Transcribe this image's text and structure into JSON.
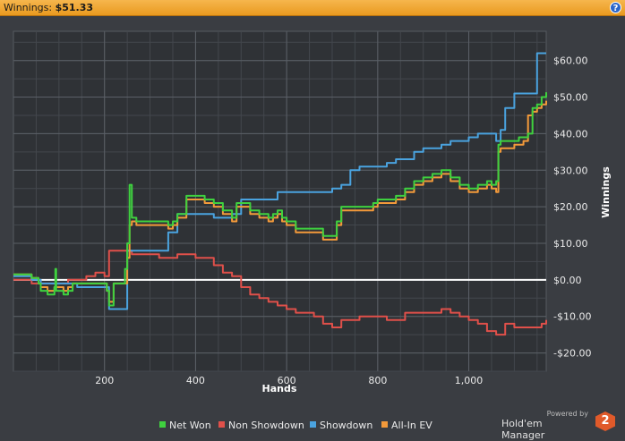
{
  "header": {
    "label": "Winnings:",
    "value": "$51.33",
    "help_icon": "help-icon"
  },
  "brand": {
    "powered": "Powered by",
    "name": "Hold'em Manager",
    "logo_glyph": "2"
  },
  "chart_data": {
    "type": "line",
    "xlabel": "Hands",
    "ylabel": "Winnings",
    "x_ticks": [
      200,
      400,
      600,
      800,
      1000
    ],
    "x_tick_labels": [
      "200",
      "400",
      "600",
      "800",
      "1,000"
    ],
    "y_ticks": [
      60,
      50,
      40,
      30,
      20,
      10,
      0,
      -10,
      -20
    ],
    "y_tick_labels": [
      "$60.00",
      "$50.00",
      "$40.00",
      "$30.00",
      "$20.00",
      "$10.00",
      "$0.00",
      "-$10.00",
      "-$20.00"
    ],
    "xlim": [
      0,
      1170
    ],
    "ylim": [
      -25,
      68
    ],
    "grid": true,
    "legend_position": "bottom",
    "series": [
      {
        "name": "Net Won",
        "color": "#3fd13f",
        "x": [
          0,
          20,
          40,
          55,
          60,
          75,
          90,
          92,
          94,
          110,
          120,
          130,
          150,
          180,
          200,
          205,
          210,
          220,
          240,
          245,
          250,
          255,
          260,
          270,
          300,
          330,
          340,
          350,
          360,
          380,
          400,
          420,
          440,
          460,
          480,
          490,
          500,
          520,
          540,
          560,
          570,
          580,
          590,
          600,
          620,
          660,
          670,
          680,
          690,
          700,
          710,
          720,
          730,
          760,
          790,
          800,
          820,
          840,
          860,
          880,
          900,
          920,
          940,
          960,
          980,
          1000,
          1020,
          1040,
          1050,
          1060,
          1065,
          1070,
          1080,
          1090,
          1100,
          1110,
          1120,
          1130,
          1140,
          1150,
          1160,
          1170
        ],
        "y": [
          1.5,
          1.5,
          0.5,
          -1,
          -3,
          -4,
          -2,
          3,
          -3,
          -4,
          -3,
          -1,
          -1,
          -1,
          -1,
          -3,
          -7,
          -1,
          -1,
          3,
          10,
          26,
          17,
          16,
          16,
          16,
          15,
          16,
          18,
          23,
          23,
          22,
          21,
          19,
          17,
          21,
          21,
          19,
          18,
          17,
          18,
          19,
          17,
          16,
          14,
          14,
          14,
          12,
          12,
          12,
          16,
          20,
          20,
          20,
          21,
          22,
          22,
          23,
          25,
          27,
          28,
          29,
          30,
          28,
          26,
          25,
          26,
          27,
          26,
          27,
          37,
          38,
          38,
          38,
          38,
          39,
          39,
          40,
          47,
          48,
          50,
          51.33
        ]
      },
      {
        "name": "Non Showdown",
        "color": "#e0504a",
        "x": [
          0,
          20,
          40,
          60,
          80,
          100,
          120,
          140,
          160,
          180,
          200,
          210,
          220,
          240,
          260,
          280,
          300,
          320,
          340,
          360,
          380,
          400,
          420,
          440,
          460,
          480,
          500,
          520,
          540,
          560,
          580,
          600,
          620,
          640,
          660,
          680,
          700,
          720,
          740,
          760,
          780,
          800,
          820,
          840,
          860,
          880,
          900,
          920,
          940,
          960,
          980,
          1000,
          1020,
          1040,
          1060,
          1080,
          1100,
          1120,
          1140,
          1160,
          1170
        ],
        "y": [
          0,
          0,
          -1,
          -1,
          -1,
          -1,
          0,
          0,
          1,
          2,
          1,
          8,
          8,
          8,
          7,
          7,
          7,
          6,
          6,
          7,
          7,
          6,
          6,
          4,
          2,
          1,
          -2,
          -4,
          -5,
          -6,
          -7,
          -8,
          -9,
          -9,
          -10,
          -12,
          -13,
          -11,
          -11,
          -10,
          -10,
          -10,
          -11,
          -11,
          -9,
          -9,
          -9,
          -9,
          -8,
          -9,
          -10,
          -11,
          -12,
          -14,
          -15,
          -12,
          -13,
          -13,
          -13,
          -12,
          -11
        ]
      },
      {
        "name": "Showdown",
        "color": "#4aa3df",
        "x": [
          0,
          20,
          40,
          60,
          80,
          100,
          120,
          140,
          160,
          180,
          200,
          210,
          230,
          240,
          250,
          255,
          260,
          300,
          340,
          360,
          380,
          420,
          440,
          480,
          500,
          520,
          560,
          580,
          600,
          640,
          660,
          690,
          700,
          720,
          740,
          760,
          800,
          820,
          840,
          880,
          900,
          940,
          960,
          1000,
          1020,
          1040,
          1060,
          1065,
          1070,
          1080,
          1100,
          1120,
          1140,
          1150,
          1160,
          1170
        ],
        "y": [
          1,
          1,
          0,
          -1,
          -1,
          -1,
          -1,
          -2,
          -2,
          -2,
          -2,
          -8,
          -8,
          -8,
          8,
          8,
          8,
          8,
          13,
          18,
          18,
          18,
          17,
          18,
          22,
          22,
          22,
          24,
          24,
          24,
          24,
          24,
          25,
          26,
          30,
          31,
          31,
          32,
          33,
          35,
          36,
          37,
          38,
          39,
          40,
          40,
          38,
          38,
          41,
          47,
          51,
          51,
          51,
          62,
          62,
          62
        ]
      },
      {
        "name": "All-In EV",
        "color": "#f39a3a",
        "x": [
          0,
          20,
          40,
          55,
          60,
          75,
          90,
          110,
          120,
          130,
          150,
          180,
          200,
          205,
          210,
          220,
          240,
          250,
          255,
          260,
          270,
          300,
          330,
          340,
          350,
          360,
          380,
          400,
          420,
          440,
          460,
          480,
          490,
          500,
          520,
          540,
          560,
          570,
          580,
          590,
          600,
          620,
          660,
          670,
          680,
          690,
          700,
          710,
          720,
          730,
          760,
          790,
          800,
          820,
          840,
          860,
          880,
          900,
          920,
          940,
          960,
          980,
          1000,
          1020,
          1040,
          1050,
          1060,
          1065,
          1070,
          1080,
          1090,
          1100,
          1110,
          1120,
          1130,
          1140,
          1150,
          1160,
          1170
        ],
        "y": [
          1.5,
          1.5,
          0.5,
          -1,
          -2,
          -3,
          -2,
          -3,
          -2,
          -1,
          -1,
          -1,
          -1,
          -3,
          -6,
          -1,
          -1,
          6,
          15,
          16,
          15,
          15,
          15,
          14,
          15,
          17,
          22,
          22,
          21,
          20,
          18,
          16,
          20,
          20,
          18,
          17,
          16,
          17,
          18,
          16,
          15,
          13,
          13,
          13,
          11,
          11,
          11,
          15,
          19,
          19,
          19,
          20,
          21,
          21,
          22,
          24,
          26,
          27,
          28,
          29,
          27,
          25,
          24,
          25,
          26,
          25,
          24,
          35,
          36,
          36,
          36,
          37,
          37,
          38,
          45,
          46,
          47,
          48,
          49
        ]
      }
    ]
  }
}
